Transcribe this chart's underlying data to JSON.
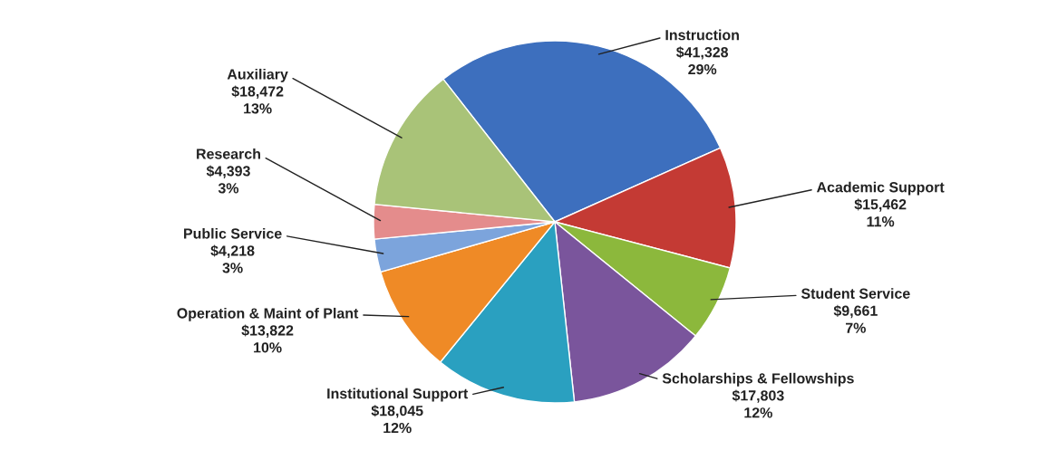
{
  "chart_data": {
    "type": "pie",
    "categories": [
      "Instruction",
      "Academic Support",
      "Student Service",
      "Scholarships & Fellowships",
      "Institutional Support",
      "Operation & Maint of Plant",
      "Public Service",
      "Research",
      "Auxiliary"
    ],
    "values": [
      41328,
      15462,
      9661,
      17803,
      18045,
      13822,
      4218,
      4393,
      18472
    ],
    "value_labels": [
      "$41,328\n29%",
      "$15,462\n11%",
      "$9,661\n7%",
      "$17,803\n12%",
      "$18,045\n12%",
      "$13,822\n10%",
      "$4,218\n3%",
      "$4,393\n3%",
      "$18,472\n13%"
    ],
    "colors": [
      "#3d6fbe",
      "#c43a34",
      "#8cb83c",
      "#7a559c",
      "#2aa0c0",
      "#ef8a26",
      "#7ca4dc",
      "#e48c8c",
      "#a9c378"
    ],
    "legend": false
  }
}
